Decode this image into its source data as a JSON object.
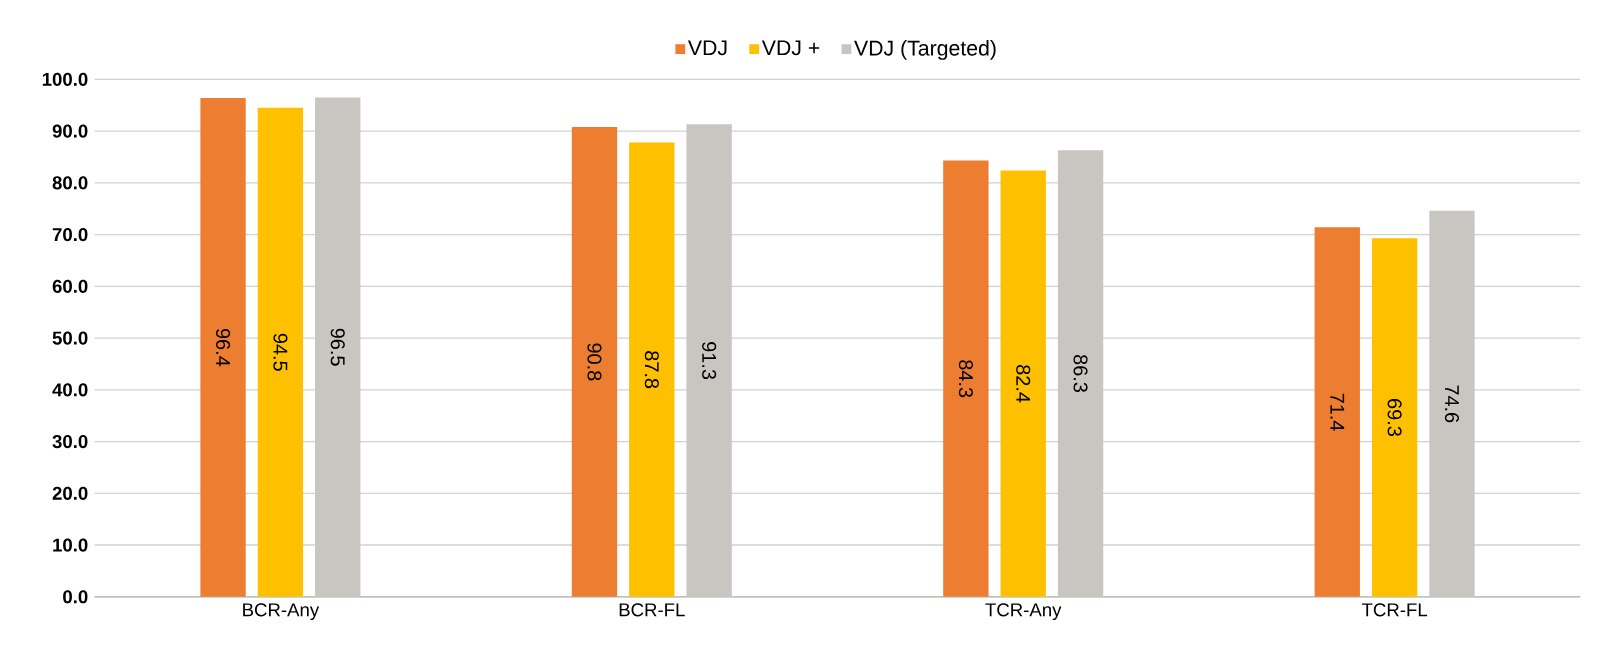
{
  "chart_data": {
    "type": "bar",
    "categories": [
      "BCR-Any",
      "BCR-FL",
      "TCR-Any",
      "TCR-FL"
    ],
    "series": [
      {
        "name": "VDJ",
        "color": "#ed7d31",
        "values": [
          96.4,
          90.8,
          84.3,
          71.4
        ]
      },
      {
        "name": "VDJ +",
        "color": "#ffc000",
        "values": [
          94.5,
          87.8,
          82.4,
          69.3
        ]
      },
      {
        "name": "VDJ (Targeted)",
        "color": "#c9c5c1",
        "values": [
          96.5,
          91.3,
          86.3,
          74.6
        ]
      }
    ],
    "ylim": [
      0,
      100
    ],
    "yticks": [
      {
        "value": 0,
        "label": "0.0"
      },
      {
        "value": 10,
        "label": "10.0"
      },
      {
        "value": 20,
        "label": "20.0"
      },
      {
        "value": 30,
        "label": "30.0"
      },
      {
        "value": 40,
        "label": "40.0"
      },
      {
        "value": 50,
        "label": "50.0"
      },
      {
        "value": 60,
        "label": "60.0"
      },
      {
        "value": 70,
        "label": "70.0"
      },
      {
        "value": 80,
        "label": "80.0"
      },
      {
        "value": 90,
        "label": "90.0"
      },
      {
        "value": 100,
        "label": "100.0"
      }
    ],
    "grid": "y",
    "legend": "top",
    "data_labels": true
  }
}
